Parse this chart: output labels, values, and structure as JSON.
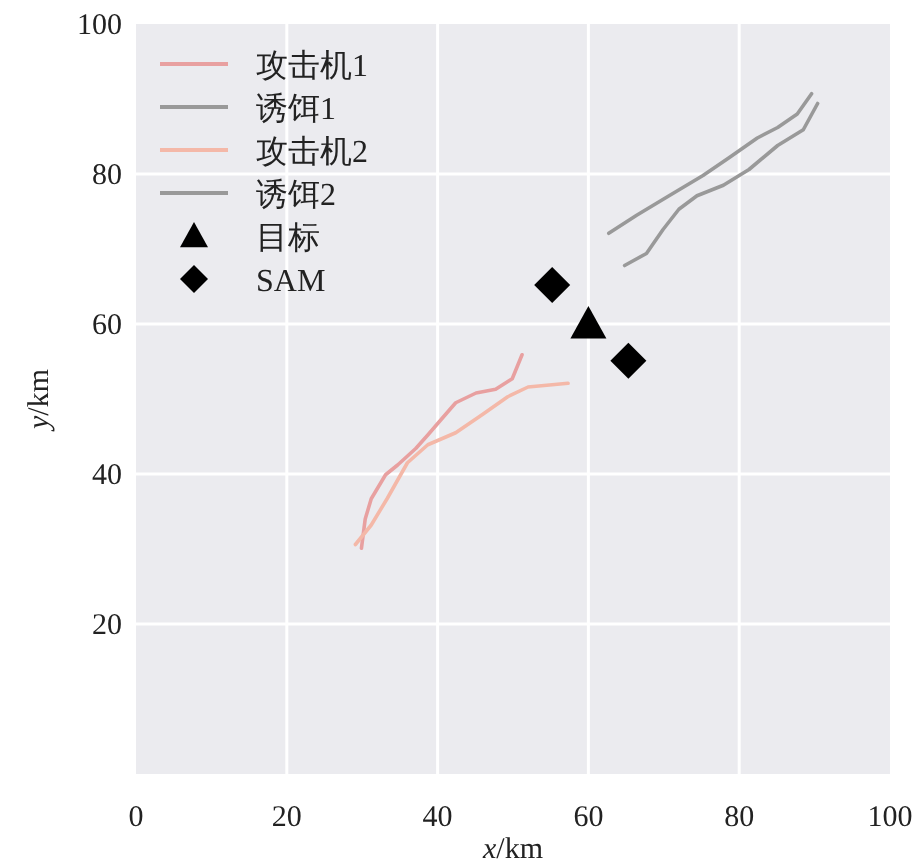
{
  "chart_data": {
    "type": "line",
    "xlabel": "x/km",
    "ylabel": "y/km",
    "xlim": [
      0,
      100
    ],
    "ylim": [
      0,
      100
    ],
    "xticks": [
      0,
      20,
      40,
      60,
      80,
      100
    ],
    "yticks": [
      20,
      40,
      60,
      80,
      100
    ],
    "grid": true,
    "legend": "top left",
    "series": [
      {
        "name": "攻击机1",
        "color": "#e8a0a0",
        "x": [
          29.9,
          30.4,
          31.2,
          33.1,
          34.7,
          37.1,
          38.7,
          40.5,
          42.4,
          45.1,
          47.7,
          49.9,
          51.2
        ],
        "values": [
          30.1,
          34.0,
          36.7,
          39.9,
          41.2,
          43.4,
          45.2,
          47.3,
          49.5,
          50.8,
          51.3,
          52.7,
          55.9
        ]
      },
      {
        "name": "诱饵1",
        "color": "#999999",
        "x": [
          62.7,
          66.4,
          70.7,
          75.2,
          78.7,
          82.4,
          85.1,
          87.7,
          89.6
        ],
        "values": [
          72.1,
          74.5,
          77.1,
          79.8,
          82.2,
          84.8,
          86.2,
          88.0,
          90.7
        ]
      },
      {
        "name": "攻击机2",
        "color": "#f4b8a8",
        "x": [
          29.1,
          31.2,
          33.3,
          36.0,
          38.7,
          42.4,
          45.9,
          49.3,
          52.0,
          57.3
        ],
        "values": [
          30.6,
          33.2,
          36.7,
          41.5,
          43.9,
          45.5,
          47.9,
          50.3,
          51.6,
          52.1
        ]
      },
      {
        "name": "诱饵2",
        "color": "#999999",
        "x": [
          64.8,
          67.7,
          69.9,
          72.0,
          74.4,
          77.9,
          81.3,
          85.1,
          88.5,
          90.4
        ],
        "values": [
          67.8,
          69.4,
          72.6,
          75.3,
          77.1,
          78.5,
          80.6,
          83.8,
          85.9,
          89.4
        ]
      },
      {
        "name": "目标",
        "type": "scatter",
        "marker": "triangle",
        "color": "#000000",
        "x": [
          60
        ],
        "values": [
          60
        ]
      },
      {
        "name": "SAM",
        "type": "scatter",
        "marker": "diamond",
        "color": "#000000",
        "x": [
          55.2,
          65.3
        ],
        "values": [
          65.2,
          55.1
        ]
      }
    ]
  }
}
